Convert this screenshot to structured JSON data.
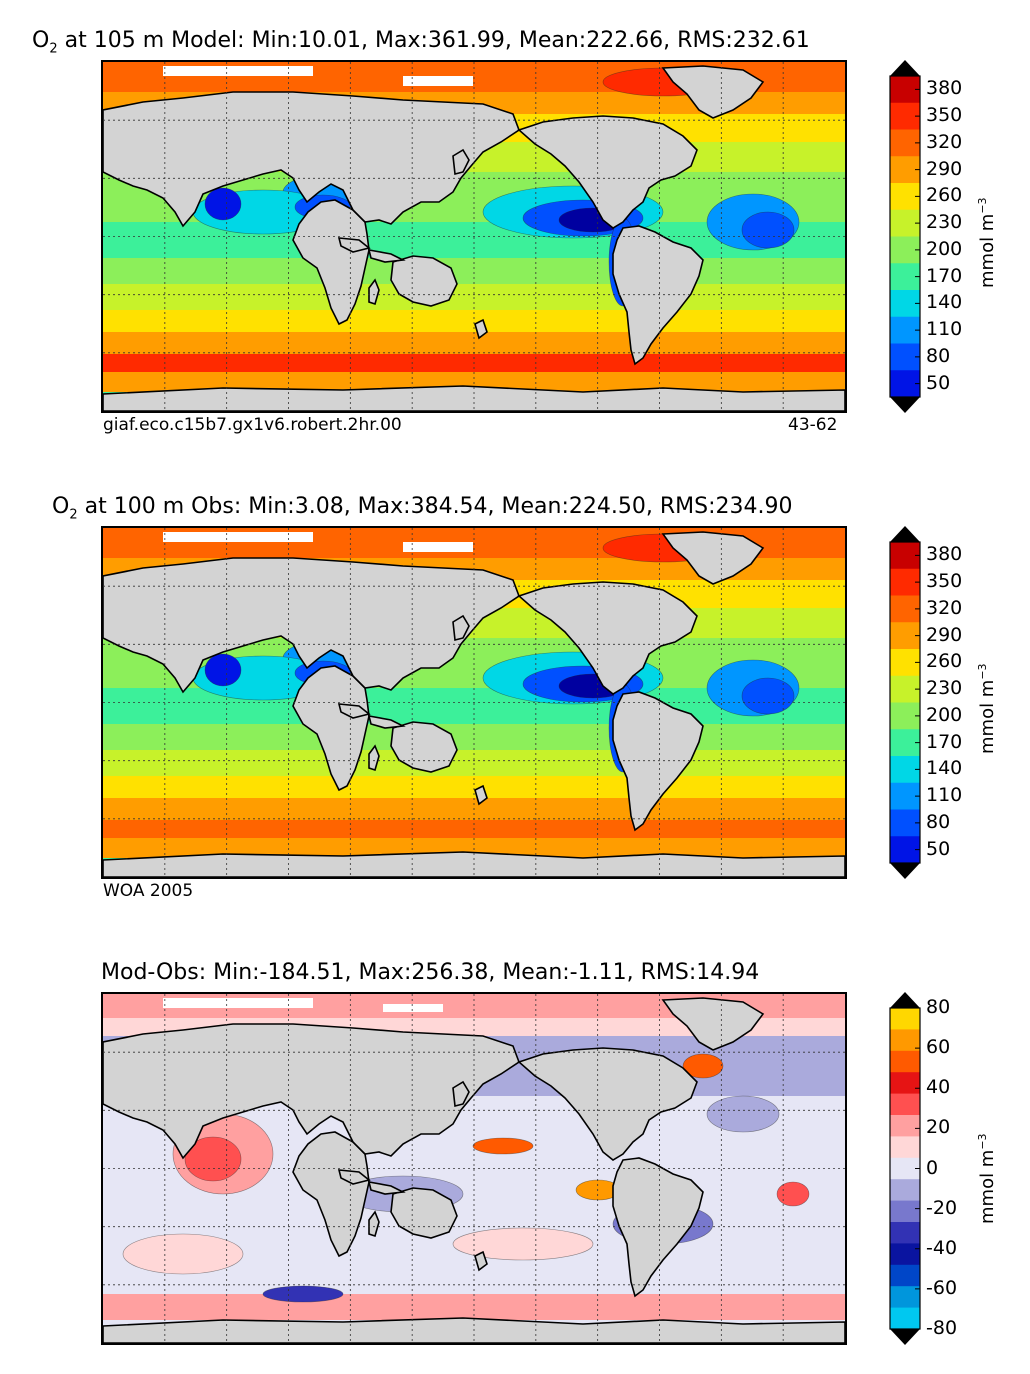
{
  "chart_data": [
    {
      "type": "heatmap",
      "title_var": "O",
      "title_sub": "2",
      "title_rest": " at 105 m Model: Min:10.01, Max:361.99, Mean:222.66, RMS:232.61",
      "footer_left": "giaf.eco.c15b7.gx1v6.robert.2hr.00",
      "footer_right": "43-62",
      "colorbar": {
        "ticks": [
          "380",
          "350",
          "320",
          "290",
          "260",
          "230",
          "200",
          "170",
          "140",
          "110",
          "80",
          "50"
        ],
        "unit_base": "mmol m",
        "unit_exp": "−3",
        "colors": [
          "#7f0000",
          "#c80000",
          "#ff2a00",
          "#ff6400",
          "#ff9d00",
          "#ffe100",
          "#c7f22a",
          "#8cef5a",
          "#3cf09a",
          "#00d7e6",
          "#0096ff",
          "#0050ff",
          "#0014e6",
          "#0000a0"
        ]
      },
      "stats": {
        "min": 10.01,
        "max": 361.99,
        "mean": 222.66,
        "rms": 232.61,
        "depth_m": 105
      }
    },
    {
      "type": "heatmap",
      "title_var": "O",
      "title_sub": "2",
      "title_rest": " at 100 m Obs: Min:3.08, Max:384.54, Mean:224.50, RMS:234.90",
      "footer_left": "WOA 2005",
      "colorbar": {
        "ticks": [
          "380",
          "350",
          "320",
          "290",
          "260",
          "230",
          "200",
          "170",
          "140",
          "110",
          "80",
          "50"
        ],
        "unit_base": "mmol m",
        "unit_exp": "−3",
        "colors": [
          "#7f0000",
          "#c80000",
          "#ff2a00",
          "#ff6400",
          "#ff9d00",
          "#ffe100",
          "#c7f22a",
          "#8cef5a",
          "#3cf09a",
          "#00d7e6",
          "#0096ff",
          "#0050ff",
          "#0014e6",
          "#0000a0"
        ]
      },
      "stats": {
        "min": 3.08,
        "max": 384.54,
        "mean": 224.5,
        "rms": 234.9,
        "depth_m": 100
      }
    },
    {
      "type": "heatmap",
      "title_rest": "Mod-Obs: Min:-184.51, Max:256.38, Mean:-1.11, RMS:14.94",
      "colorbar": {
        "ticks": [
          "80",
          "60",
          "40",
          "20",
          "0",
          "-20",
          "-40",
          "-60",
          "-80"
        ],
        "unit_base": "mmol m",
        "unit_exp": "−3",
        "colors": [
          "#ffff3c",
          "#ffd700",
          "#ff9900",
          "#ff5a00",
          "#e61414",
          "#ff5050",
          "#ffa0a0",
          "#ffd7d7",
          "#e6e6f5",
          "#aaaadc",
          "#7878cd",
          "#3232b4",
          "#0a14a0",
          "#0046c8",
          "#0096dc",
          "#00c8f0",
          "#00ffff"
        ]
      },
      "stats": {
        "min": -184.51,
        "max": 256.38,
        "mean": -1.11,
        "rms": 14.94
      }
    }
  ]
}
